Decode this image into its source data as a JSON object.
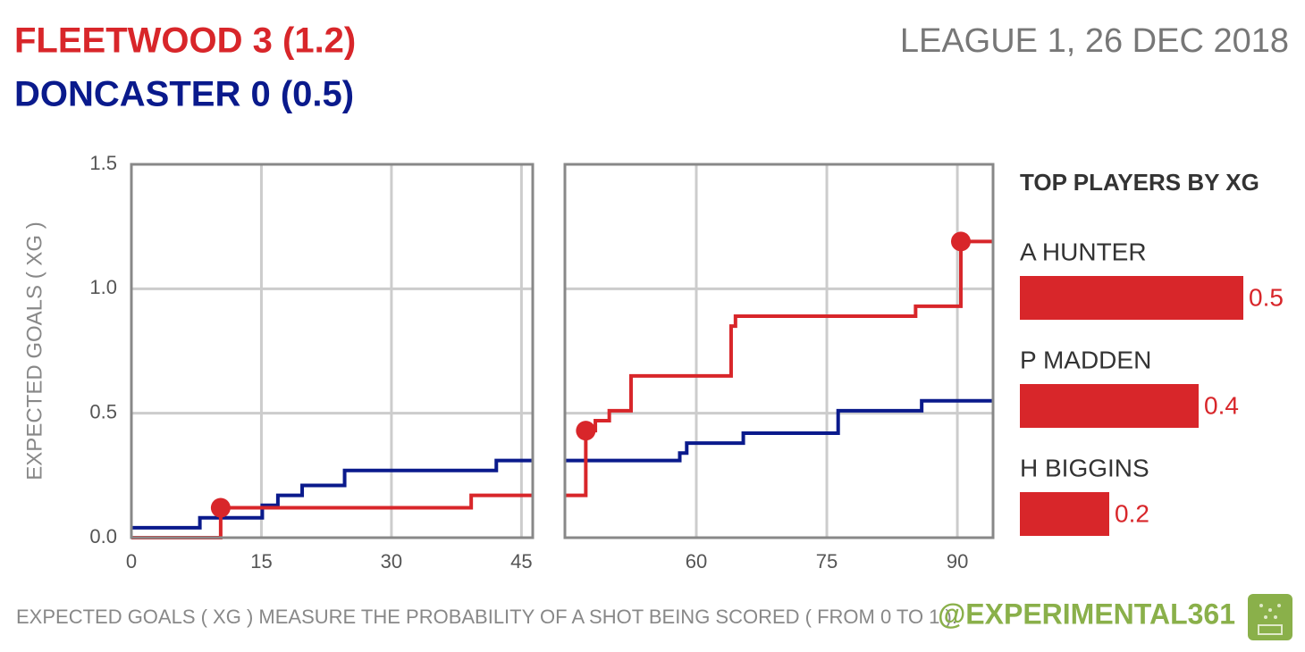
{
  "chart_data": {
    "type": "line",
    "step": true,
    "title": "FLEETWOOD 3 (1.2)",
    "title_color": "#d8262a",
    "subtitle": "DONCASTER 0 (0.5)",
    "subtitle_color": "#0a1a8c",
    "match_label": "LEAGUE 1, 26 DEC 2018",
    "y_label": "EXPECTED GOALS ( XG )",
    "ylim": [
      0,
      1.5
    ],
    "yticks": [
      {
        "value": 0,
        "label": "0.0"
      },
      0.5,
      {
        "value": 1,
        "label": "1.0"
      },
      1.5
    ],
    "grid": true,
    "panels": [
      {
        "xlim": [
          0,
          46.3
        ],
        "xticks": [
          0,
          15,
          30,
          45
        ]
      },
      {
        "xlim": [
          44.9,
          94.1
        ],
        "xticks": [
          60,
          75,
          90
        ]
      }
    ],
    "series": [
      {
        "color": "#0a1a8c",
        "halves": [
          {
            "x": [
              0,
              7.9,
              15.1,
              16.9,
              19.7,
              24.6,
              42.1,
              46.3
            ],
            "values": [
              0.04,
              0.08,
              0.13,
              0.17,
              0.21,
              0.27,
              0.31,
              0.31
            ]
          },
          {
            "x": [
              44.9,
              58.1,
              58.9,
              65.4,
              76.3,
              85.9,
              94.1
            ],
            "values": [
              0.31,
              0.34,
              0.38,
              0.42,
              0.51,
              0.55,
              0.55
            ]
          }
        ],
        "goals": {
          "x": [],
          "values": []
        }
      },
      {
        "color": "#d8262a",
        "halves": [
          {
            "x": [
              0,
              10.3,
              39.2,
              46.3
            ],
            "values": [
              0,
              0.12,
              0.17,
              0.17
            ]
          },
          {
            "x": [
              44.9,
              47.3,
              48.4,
              50,
              52.5,
              64,
              64.5,
              85.2,
              90.4,
              94.1
            ],
            "values": [
              0.17,
              0.43,
              0.47,
              0.51,
              0.65,
              0.85,
              0.89,
              0.93,
              1.19,
              1.19
            ]
          }
        ],
        "goals": {
          "x": [
            10.3,
            47.3,
            90.4
          ],
          "values": [
            0.12,
            0.43,
            1.19
          ]
        }
      }
    ],
    "players": {
      "title": "TOP PLAYERS BY XG",
      "color": "#d8262a",
      "xlim": [
        0,
        0.5
      ],
      "names": [
        "A HUNTER",
        "P MADDEN",
        "H BIGGINS"
      ],
      "values": [
        0.5,
        0.4,
        0.2
      ]
    },
    "footnote": "EXPECTED GOALS ( XG ) MEASURE THE PROBABILITY OF A SHOT BEING SCORED ( FROM 0 TO 1 ).",
    "credit": "@EXPERIMENTAL361",
    "credit_color": "#8ab04a"
  }
}
